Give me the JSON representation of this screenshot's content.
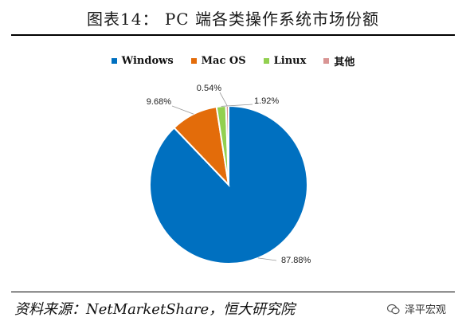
{
  "title": "图表14： PC 端各类操作系统市场份额",
  "source": "资料来源：NetMarketShare，恒大研究院",
  "brand": "泽平宏观",
  "chart_data": {
    "type": "pie",
    "labels": [
      "Windows",
      "Mac OS",
      "Linux",
      "其他"
    ],
    "values": [
      87.88,
      9.68,
      1.92,
      0.54
    ],
    "value_labels": [
      "87.88%",
      "9.68%",
      "1.92%",
      "0.54%"
    ],
    "colors": [
      "#0070c0",
      "#e36c0a",
      "#92d050",
      "#d99594"
    ],
    "legend_position": "top"
  }
}
